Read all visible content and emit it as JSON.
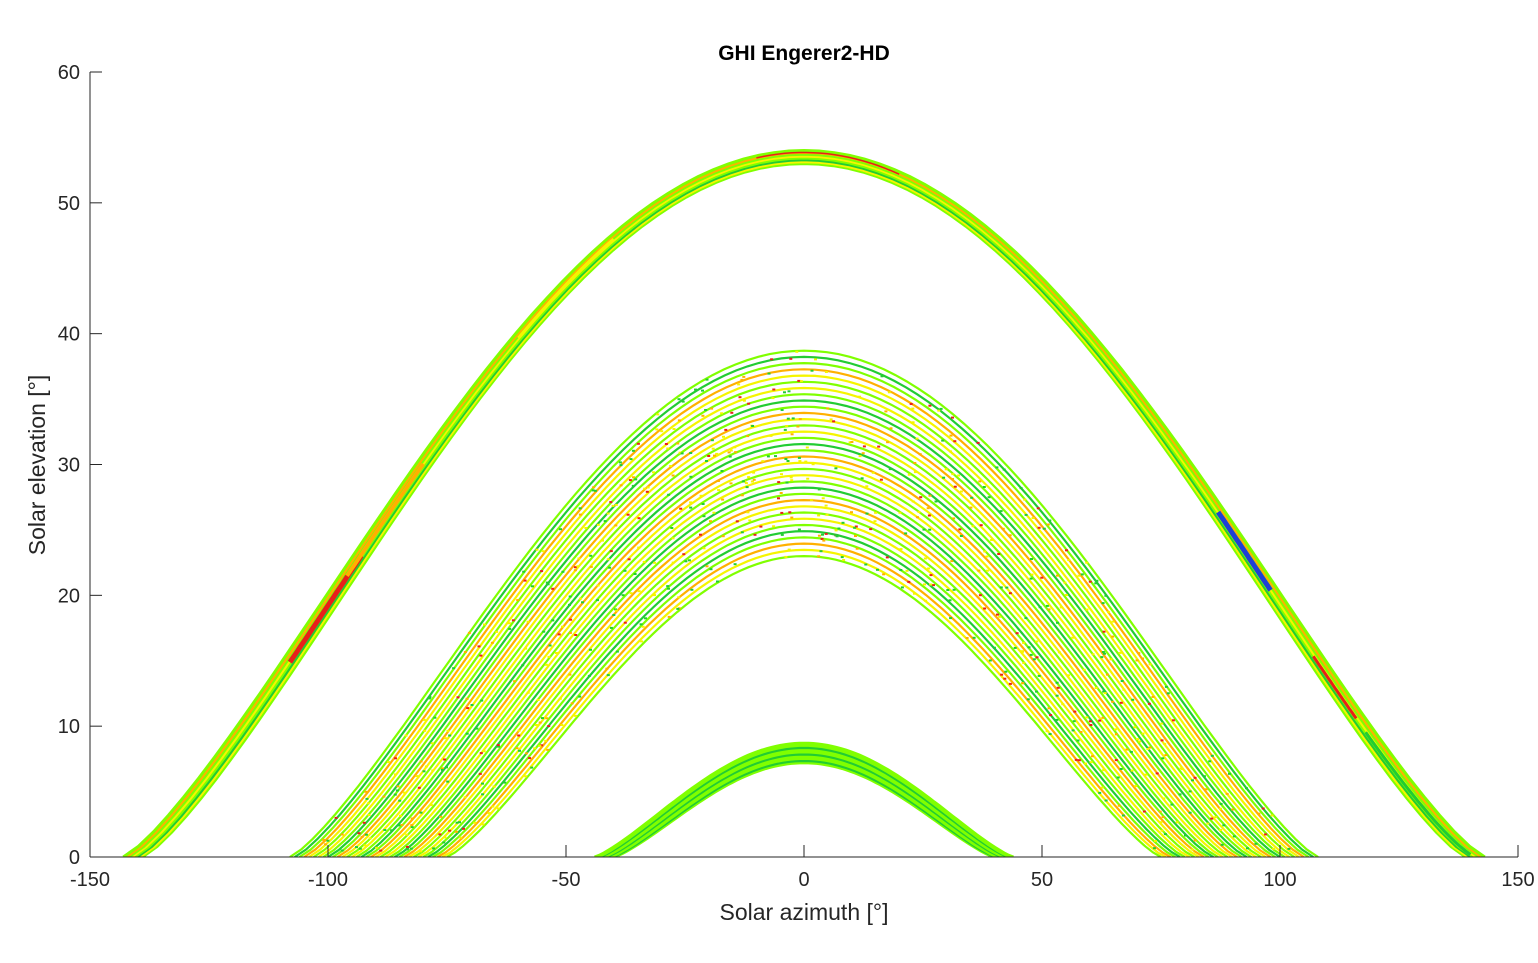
{
  "chart_data": {
    "type": "scatter",
    "title": "GHI Engerer2-HD",
    "xlabel": "Solar azimuth [°]",
    "ylabel": "Solar elevation [°]",
    "xlim": [
      -150,
      150
    ],
    "ylim": [
      0,
      60
    ],
    "xticks": [
      -150,
      -100,
      -50,
      0,
      50,
      100,
      150
    ],
    "yticks": [
      0,
      10,
      20,
      30,
      40,
      50,
      60
    ],
    "grid": false,
    "colors": {
      "blue": "#1f3fd6",
      "green": "#22cc33",
      "lime": "#80ff00",
      "yellow": "#f5f500",
      "orange": "#ffb000",
      "red": "#e8201a"
    },
    "bands": [
      {
        "description_role": "upper",
        "peak_elevation_range": [
          53.0,
          54.0
        ],
        "azimuth_range": [
          -143,
          143
        ],
        "dominant_colors": [
          "yellow",
          "lime",
          "green",
          "red",
          "blue"
        ]
      },
      {
        "description_role": "middle",
        "peak_elevation_range": [
          23.0,
          38.7
        ],
        "azimuth_range": [
          -108,
          108
        ],
        "dominant_colors": [
          "lime",
          "yellow",
          "orange",
          "green",
          "red"
        ]
      },
      {
        "description_role": "lower",
        "peak_elevation_range": [
          7.2,
          8.7
        ],
        "azimuth_range": [
          -44,
          44
        ],
        "dominant_colors": [
          "lime",
          "green"
        ]
      }
    ]
  }
}
